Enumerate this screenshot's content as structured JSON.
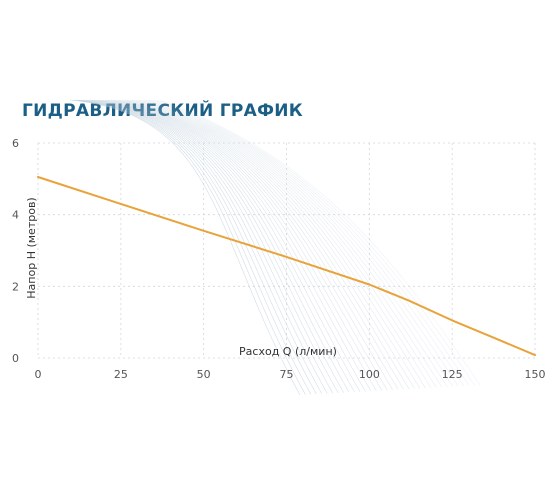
{
  "chart_data": {
    "type": "line",
    "title": "ГИДРАВЛИЧЕСКИЙ ГРАФИК",
    "xlabel": "Расход Q (л/мин)",
    "ylabel": "Напор Н (метров)",
    "xlim": [
      0,
      150
    ],
    "ylim": [
      0,
      6
    ],
    "x_ticks": [
      0,
      25,
      50,
      75,
      100,
      125,
      150
    ],
    "y_ticks": [
      0,
      2,
      4,
      6
    ],
    "grid": true,
    "series": [
      {
        "x": [
          0,
          25,
          50,
          75,
          100,
          112,
          125,
          138,
          150
        ],
        "y": [
          5.05,
          4.3,
          3.55,
          2.82,
          2.05,
          1.6,
          1.05,
          0.55,
          0.08
        ]
      }
    ]
  },
  "colors": {
    "title": "#1c5f86",
    "line": "#e8a33a",
    "grid": "#cfd8df",
    "axis_text": "#555555",
    "swoosh": "#a9bfcf"
  }
}
